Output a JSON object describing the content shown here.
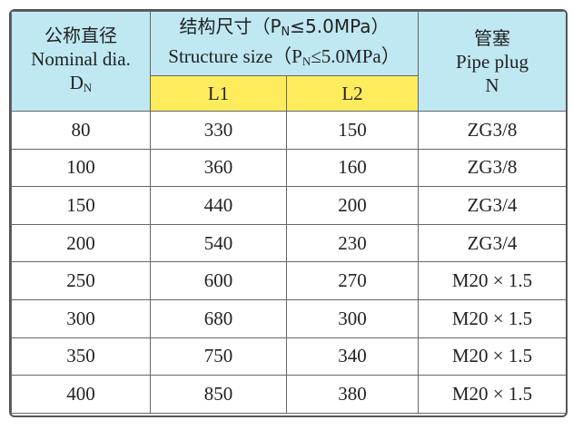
{
  "table": {
    "header": {
      "col1": {
        "zh": "公称直径",
        "en": "Nominal dia.",
        "symbol": "D",
        "subscript": "N"
      },
      "col2": {
        "zh_before": "结构尺寸（P",
        "zh_subscript": "N",
        "zh_after": "≤5.0MPa）",
        "en_before": "Structure size（P",
        "en_subscript": "N",
        "en_after": "≤5.0MPa）",
        "sub": [
          "L1",
          "L2"
        ]
      },
      "col3": {
        "zh": "管塞",
        "en": "Pipe plug",
        "symbol": "N"
      }
    },
    "rows": [
      [
        80,
        330,
        150,
        "ZG3/8"
      ],
      [
        100,
        360,
        160,
        "ZG3/8"
      ],
      [
        150,
        440,
        200,
        "ZG3/4"
      ],
      [
        200,
        540,
        230,
        "ZG3/4"
      ],
      [
        250,
        600,
        270,
        "M20 × 1.5"
      ],
      [
        300,
        680,
        300,
        "M20 × 1.5"
      ],
      [
        350,
        750,
        340,
        "M20 × 1.5"
      ],
      [
        400,
        850,
        380,
        "M20 × 1.5"
      ]
    ]
  }
}
